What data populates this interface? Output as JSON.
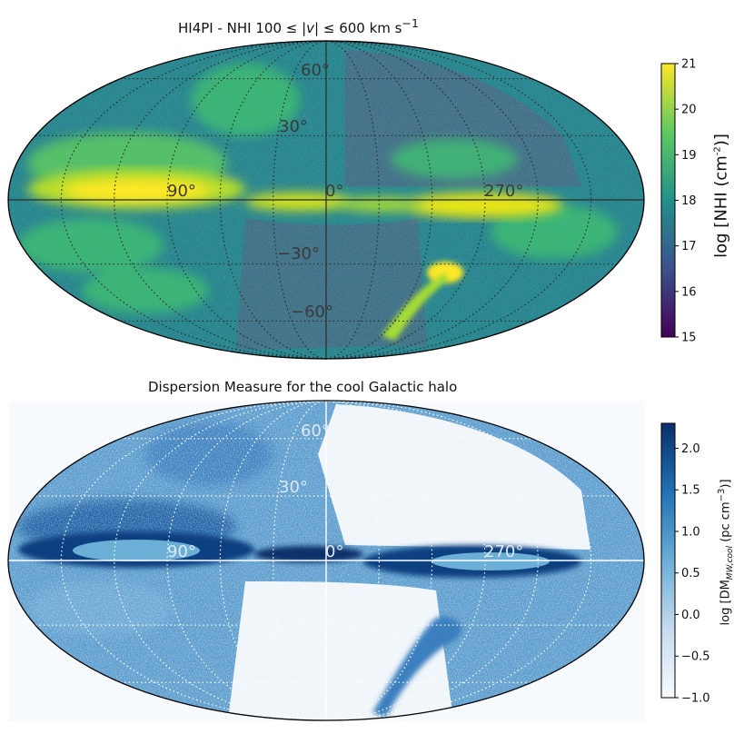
{
  "panels": [
    {
      "title_prefix": "HI4PI - NHI 100 ≤ |",
      "title_var": "v",
      "title_mid": "| ≤ 600 km s",
      "title_exp": "−1",
      "colorbar": {
        "label_main": "log [NHI (cm",
        "label_exp": "-2",
        "label_end": ")]",
        "ticks": [
          "21",
          "20",
          "19",
          "18",
          "17",
          "16",
          "15"
        ],
        "tick_values": [
          21,
          20,
          19,
          18,
          17,
          16,
          15
        ],
        "range": [
          15,
          21
        ],
        "colormap": "viridis",
        "colors": [
          "#440154",
          "#3b528b",
          "#21908d",
          "#5dc963",
          "#fde725"
        ]
      },
      "grid_labels": {
        "lon": [
          "90°",
          "0°",
          "270°"
        ],
        "lat": [
          "60°",
          "30°",
          "−30°",
          "−60°"
        ]
      },
      "label_color": "#3a3a3a",
      "gridline_color": "#2b2b2b"
    },
    {
      "title": "Dispersion Measure for the cool Galactic halo",
      "colorbar": {
        "label_main": "log [DM",
        "label_sub": "MW,cool",
        "label_mid": " (pc cm",
        "label_exp": "−3",
        "label_end": ")]",
        "ticks": [
          "2.0",
          "1.5",
          "1.0",
          "0.5",
          "0.0",
          "−0.5",
          "−1.0"
        ],
        "tick_values": [
          2.0,
          1.5,
          1.0,
          0.5,
          0.0,
          -0.5,
          -1.0
        ],
        "range": [
          -1.0,
          2.3
        ],
        "colormap": "Blues",
        "colors": [
          "#f7fbff",
          "#c6dbef",
          "#6baed6",
          "#2171b5",
          "#08306b"
        ]
      },
      "grid_labels": {
        "lon": [
          "90°",
          "0°",
          "270°"
        ],
        "lat": [
          "60°",
          "30°"
        ]
      },
      "label_color": "#dde8f2",
      "gridline_color": "#ffffff"
    }
  ]
}
